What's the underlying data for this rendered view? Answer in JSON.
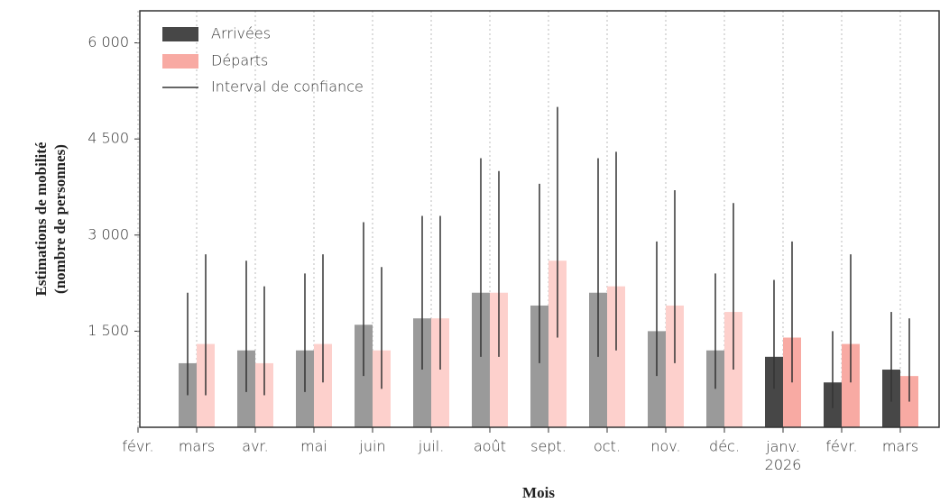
{
  "chart_data": {
    "type": "bar",
    "x_label": "Mois",
    "y_label": [
      "Estimations de mobilité",
      "(nombre de personnes)"
    ],
    "categories": [
      "févr.",
      "mars",
      "avr.",
      "mai",
      "juin",
      "juil.",
      "août",
      "sept.",
      "oct.",
      "nov.",
      "déc.",
      "janv. 2026",
      "févr.",
      "mars"
    ],
    "series": [
      {
        "name": "Arrivées",
        "color": "#474747",
        "bar_colors": [
          null,
          "#9a9a9a",
          "#9a9a9a",
          "#9a9a9a",
          "#9a9a9a",
          "#9a9a9a",
          "#9a9a9a",
          "#9a9a9a",
          "#9a9a9a",
          "#9a9a9a",
          "#9a9a9a",
          "#474747",
          "#474747",
          "#474747"
        ],
        "values": [
          null,
          1000,
          1200,
          1200,
          1600,
          1700,
          2100,
          1900,
          2100,
          1500,
          1200,
          1100,
          700,
          900
        ],
        "lower": [
          null,
          500,
          550,
          550,
          800,
          900,
          1100,
          1000,
          1100,
          800,
          600,
          600,
          300,
          400
        ],
        "upper": [
          null,
          2100,
          2600,
          2400,
          3200,
          3300,
          4200,
          3800,
          4200,
          2900,
          2400,
          2300,
          1500,
          1800
        ]
      },
      {
        "name": "Départs",
        "color": "#f8aaa3",
        "bar_colors": [
          null,
          "#fdd0cc",
          "#fdd0cc",
          "#fdd0cc",
          "#fdd0cc",
          "#fdd0cc",
          "#fdd0cc",
          "#fdd0cc",
          "#fdd0cc",
          "#fdd0cc",
          "#fdd0cc",
          "#f8aaa3",
          "#f8aaa3",
          "#f8aaa3"
        ],
        "values": [
          null,
          1300,
          1000,
          1300,
          1200,
          1700,
          2100,
          2600,
          2200,
          1900,
          1800,
          1400,
          1300,
          800
        ],
        "lower": [
          null,
          500,
          500,
          700,
          600,
          900,
          1100,
          1400,
          1200,
          1000,
          900,
          700,
          700,
          400
        ],
        "upper": [
          null,
          2700,
          2200,
          2700,
          2500,
          3300,
          4000,
          5000,
          4300,
          3700,
          3500,
          2900,
          2700,
          1700
        ]
      }
    ],
    "error_label": "Interval de confiance",
    "error_color": "#333333",
    "ylim": [
      0,
      6500
    ],
    "yticks": [
      {
        "value": 1500,
        "label": "1 500"
      },
      {
        "value": 3000,
        "label": "3 000"
      },
      {
        "value": 4500,
        "label": "4 500"
      },
      {
        "value": 6000,
        "label": "6 000"
      }
    ],
    "grid": true,
    "legend": "upper left"
  }
}
